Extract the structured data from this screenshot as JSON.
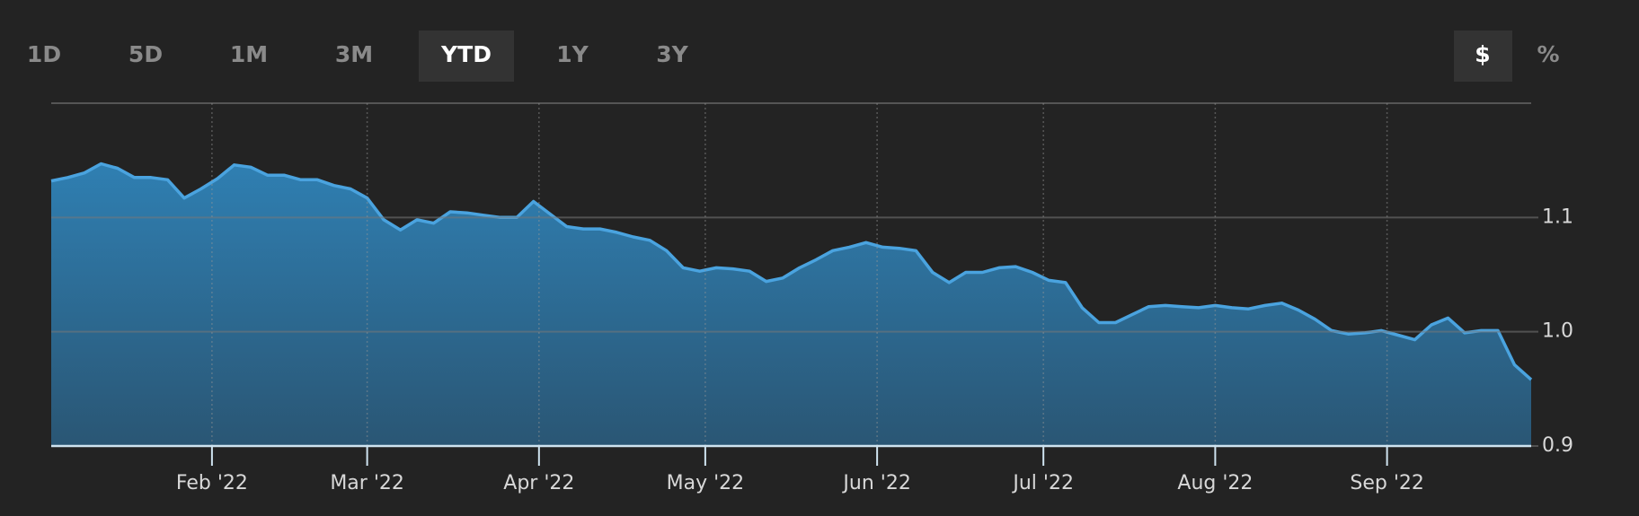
{
  "controls": {
    "range_buttons": [
      "1D",
      "5D",
      "1M",
      "3M",
      "YTD",
      "1Y",
      "3Y"
    ],
    "selected_range": "YTD",
    "unit_buttons": [
      "$",
      "%"
    ],
    "selected_unit": "$"
  },
  "chart_data": {
    "type": "area",
    "color": "#4aa3df",
    "values": [
      1.132,
      1.135,
      1.139,
      1.147,
      1.143,
      1.135,
      1.135,
      1.133,
      1.117,
      1.125,
      1.134,
      1.146,
      1.144,
      1.137,
      1.137,
      1.133,
      1.133,
      1.128,
      1.125,
      1.117,
      1.098,
      1.089,
      1.098,
      1.095,
      1.105,
      1.104,
      1.102,
      1.1,
      1.1,
      1.114,
      1.103,
      1.092,
      1.09,
      1.09,
      1.087,
      1.083,
      1.08,
      1.071,
      1.056,
      1.053,
      1.056,
      1.055,
      1.053,
      1.044,
      1.047,
      1.056,
      1.063,
      1.071,
      1.074,
      1.078,
      1.074,
      1.073,
      1.071,
      1.052,
      1.043,
      1.052,
      1.052,
      1.056,
      1.057,
      1.052,
      1.045,
      1.043,
      1.021,
      1.008,
      1.008,
      1.015,
      1.022,
      1.023,
      1.022,
      1.021,
      1.023,
      1.021,
      1.02,
      1.023,
      1.025,
      1.019,
      1.011,
      1.001,
      0.998,
      0.999,
      1.001,
      0.997,
      0.993,
      1.006,
      1.012,
      0.999,
      1.001,
      1.001,
      0.971,
      0.958
    ],
    "xlim": [
      0,
      89
    ],
    "xticks": [
      {
        "value": 9.667,
        "label": "Feb '22"
      },
      {
        "value": 19,
        "label": "Mar '22"
      },
      {
        "value": 29.333,
        "label": "Apr '22"
      },
      {
        "value": 39.333,
        "label": "May '22"
      },
      {
        "value": 49.667,
        "label": "Jun '22"
      },
      {
        "value": 59.667,
        "label": "Jul '22"
      },
      {
        "value": 70,
        "label": "Aug '22"
      },
      {
        "value": 80.333,
        "label": "Sep '22"
      }
    ],
    "ylim": [
      0.9,
      1.2
    ],
    "yticks": [
      0.9,
      {
        "value": 1.0,
        "label": "1.0"
      },
      1.1
    ],
    "grid": true
  }
}
